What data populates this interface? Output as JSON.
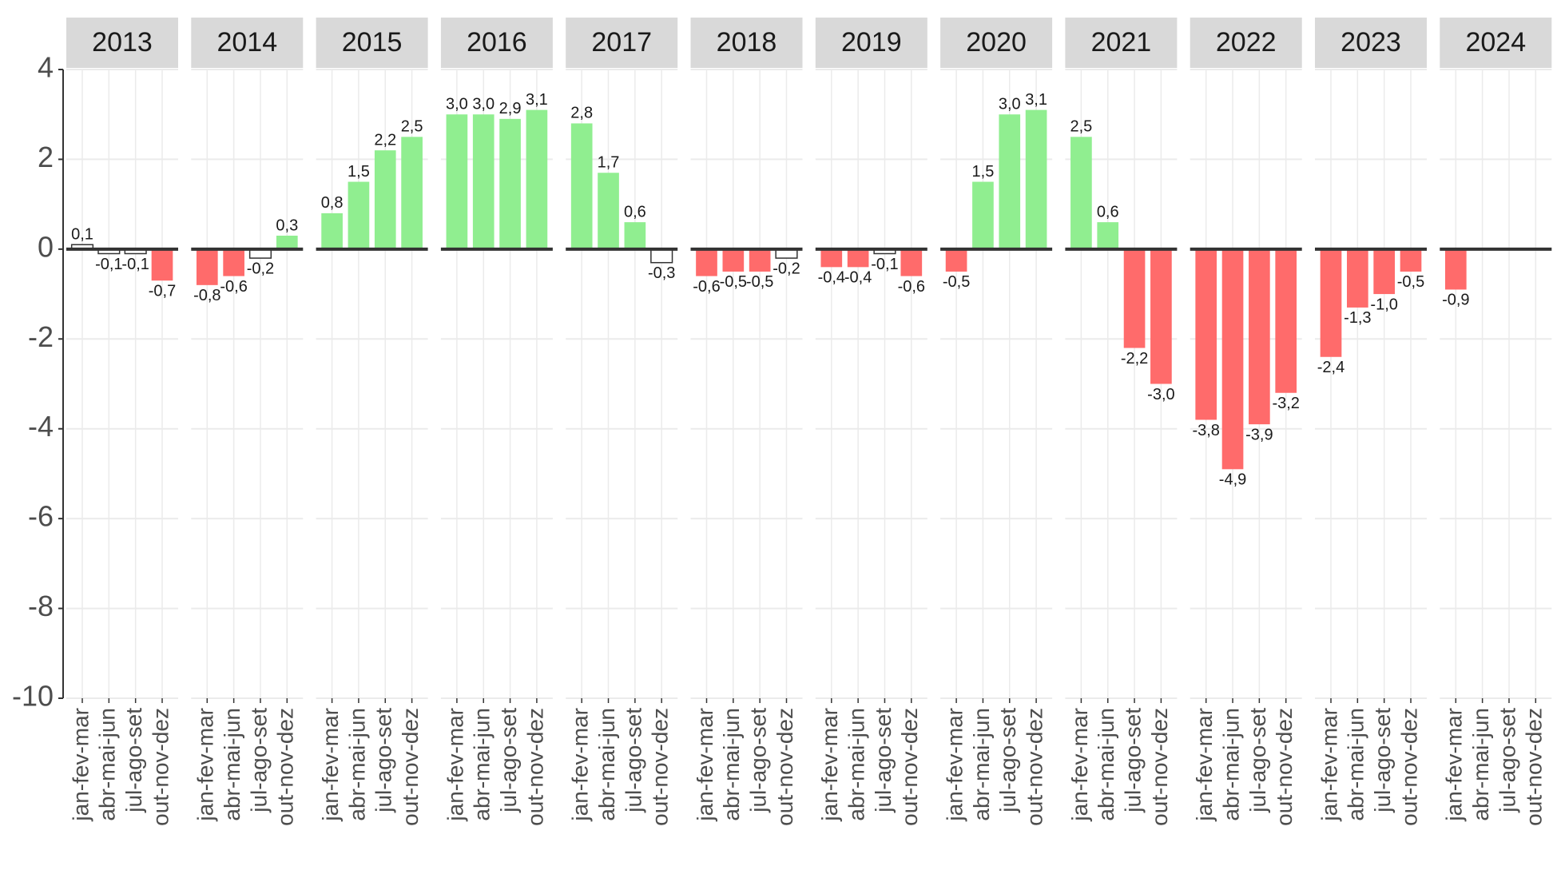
{
  "chart_data": {
    "type": "bar",
    "categories": [
      "jan-fev-mar",
      "abr-mai-jun",
      "jul-ago-set",
      "out-nov-dez"
    ],
    "ylim": [
      -10,
      4
    ],
    "yticks": [
      -10,
      -8,
      -6,
      -4,
      -2,
      0,
      2,
      4
    ],
    "grid": true,
    "hline": 0,
    "facets": [
      {
        "title": "2013",
        "values": [
          0.1,
          -0.1,
          -0.1,
          -0.7
        ],
        "value_labels": [
          "0,1",
          "-0,1",
          "-0,1",
          "-0,7"
        ],
        "colors": [
          "#ffffff",
          "#ffffff",
          "#ffffff",
          "#ff6b6b"
        ]
      },
      {
        "title": "2014",
        "values": [
          -0.8,
          -0.6,
          -0.2,
          0.3
        ],
        "value_labels": [
          "-0,8",
          "-0,6",
          "-0,2",
          "0,3"
        ],
        "colors": [
          "#ff6b6b",
          "#ff6b6b",
          "#ffffff",
          "#90ee90"
        ]
      },
      {
        "title": "2015",
        "values": [
          0.8,
          1.5,
          2.2,
          2.5
        ],
        "value_labels": [
          "0,8",
          "1,5",
          "2,2",
          "2,5"
        ],
        "colors": [
          "#90ee90",
          "#90ee90",
          "#90ee90",
          "#90ee90"
        ]
      },
      {
        "title": "2016",
        "values": [
          3.0,
          3.0,
          2.9,
          3.1
        ],
        "value_labels": [
          "3,0",
          "3,0",
          "2,9",
          "3,1"
        ],
        "colors": [
          "#90ee90",
          "#90ee90",
          "#90ee90",
          "#90ee90"
        ]
      },
      {
        "title": "2017",
        "values": [
          2.8,
          1.7,
          0.6,
          -0.3
        ],
        "value_labels": [
          "2,8",
          "1,7",
          "0,6",
          "-0,3"
        ],
        "colors": [
          "#90ee90",
          "#90ee90",
          "#90ee90",
          "#ffffff"
        ]
      },
      {
        "title": "2018",
        "values": [
          -0.6,
          -0.5,
          -0.5,
          -0.2
        ],
        "value_labels": [
          "-0,6",
          "-0,5",
          "-0,5",
          "-0,2"
        ],
        "colors": [
          "#ff6b6b",
          "#ff6b6b",
          "#ff6b6b",
          "#ffffff"
        ]
      },
      {
        "title": "2019",
        "values": [
          -0.4,
          -0.4,
          -0.1,
          -0.6
        ],
        "value_labels": [
          "-0,4",
          "-0,4",
          "-0,1",
          "-0,6"
        ],
        "colors": [
          "#ff6b6b",
          "#ff6b6b",
          "#ffffff",
          "#ff6b6b"
        ]
      },
      {
        "title": "2020",
        "values": [
          -0.5,
          1.5,
          3.0,
          3.1
        ],
        "value_labels": [
          "-0,5",
          "1,5",
          "3,0",
          "3,1"
        ],
        "colors": [
          "#ff6b6b",
          "#90ee90",
          "#90ee90",
          "#90ee90"
        ]
      },
      {
        "title": "2021",
        "values": [
          2.5,
          0.6,
          -2.2,
          -3.0
        ],
        "value_labels": [
          "2,5",
          "0,6",
          "-2,2",
          "-3,0"
        ],
        "colors": [
          "#90ee90",
          "#90ee90",
          "#ff6b6b",
          "#ff6b6b"
        ]
      },
      {
        "title": "2022",
        "values": [
          -3.8,
          -4.9,
          -3.9,
          -3.2
        ],
        "value_labels": [
          "-3,8",
          "-4,9",
          "-3,9",
          "-3,2"
        ],
        "colors": [
          "#ff6b6b",
          "#ff6b6b",
          "#ff6b6b",
          "#ff6b6b"
        ]
      },
      {
        "title": "2023",
        "values": [
          -2.4,
          -1.3,
          -1.0,
          -0.5
        ],
        "value_labels": [
          "-2,4",
          "-1,3",
          "-1,0",
          "-0,5"
        ],
        "colors": [
          "#ff6b6b",
          "#ff6b6b",
          "#ff6b6b",
          "#ff6b6b"
        ]
      },
      {
        "title": "2024",
        "values": [
          -0.9,
          null,
          null,
          null
        ],
        "value_labels": [
          "-0,9",
          null,
          null,
          null
        ],
        "colors": [
          "#ff6b6b",
          null,
          null,
          null
        ]
      }
    ]
  }
}
